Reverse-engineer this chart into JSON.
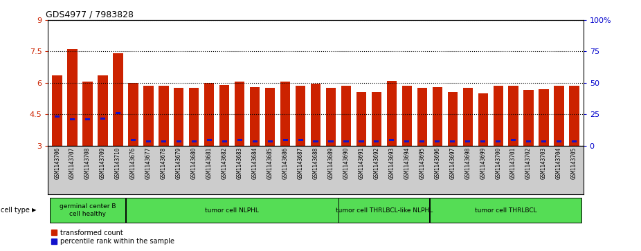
{
  "title": "GDS4977 / 7983828",
  "samples": [
    "GSM1143706",
    "GSM1143707",
    "GSM1143708",
    "GSM1143709",
    "GSM1143710",
    "GSM1143676",
    "GSM1143677",
    "GSM1143678",
    "GSM1143679",
    "GSM1143680",
    "GSM1143681",
    "GSM1143682",
    "GSM1143683",
    "GSM1143684",
    "GSM1143685",
    "GSM1143686",
    "GSM1143687",
    "GSM1143688",
    "GSM1143689",
    "GSM1143690",
    "GSM1143691",
    "GSM1143692",
    "GSM1143693",
    "GSM1143694",
    "GSM1143695",
    "GSM1143696",
    "GSM1143697",
    "GSM1143698",
    "GSM1143699",
    "GSM1143700",
    "GSM1143701",
    "GSM1143702",
    "GSM1143703",
    "GSM1143704",
    "GSM1143705"
  ],
  "bar_heights": [
    6.35,
    7.6,
    6.05,
    6.35,
    7.4,
    6.0,
    5.85,
    5.85,
    5.75,
    5.75,
    6.0,
    5.9,
    6.05,
    5.8,
    5.75,
    6.05,
    5.85,
    5.95,
    5.75,
    5.85,
    5.55,
    5.55,
    6.1,
    5.85,
    5.75,
    5.8,
    5.55,
    5.75,
    5.5,
    5.85,
    5.85,
    5.65,
    5.7,
    5.85,
    5.85
  ],
  "blue_positions": [
    4.4,
    4.25,
    4.25,
    4.3,
    4.55,
    3.25,
    3.2,
    3.2,
    3.2,
    3.2,
    3.25,
    3.2,
    3.25,
    3.2,
    3.2,
    3.25,
    3.25,
    3.2,
    3.2,
    3.2,
    3.2,
    3.2,
    3.25,
    3.2,
    3.2,
    3.2,
    3.2,
    3.2,
    3.2,
    3.2,
    3.25,
    3.2,
    3.2,
    3.2,
    3.2
  ],
  "cell_type_groups": [
    {
      "label": "germinal center B\ncell healthy",
      "start": 0,
      "end": 5
    },
    {
      "label": "tumor cell NLPHL",
      "start": 5,
      "end": 19
    },
    {
      "label": "tumor cell THRLBCL-like NLPHL",
      "start": 19,
      "end": 25
    },
    {
      "label": "tumor cell THRLBCL",
      "start": 25,
      "end": 35
    }
  ],
  "ymin": 3.0,
  "ymax": 9.0,
  "yticks": [
    3.0,
    4.5,
    6.0,
    7.5,
    9.0
  ],
  "ytick_labels": [
    "3",
    "4.5",
    "6",
    "7.5",
    "9"
  ],
  "right_ytick_vals": [
    0,
    25,
    50,
    75,
    100
  ],
  "right_ytick_labels": [
    "0",
    "25",
    "50",
    "75",
    "100%"
  ],
  "bar_color": "#CC2200",
  "blue_color": "#1111CC",
  "xtick_bg": "#CCCCCC",
  "group_color": "#55DD55"
}
